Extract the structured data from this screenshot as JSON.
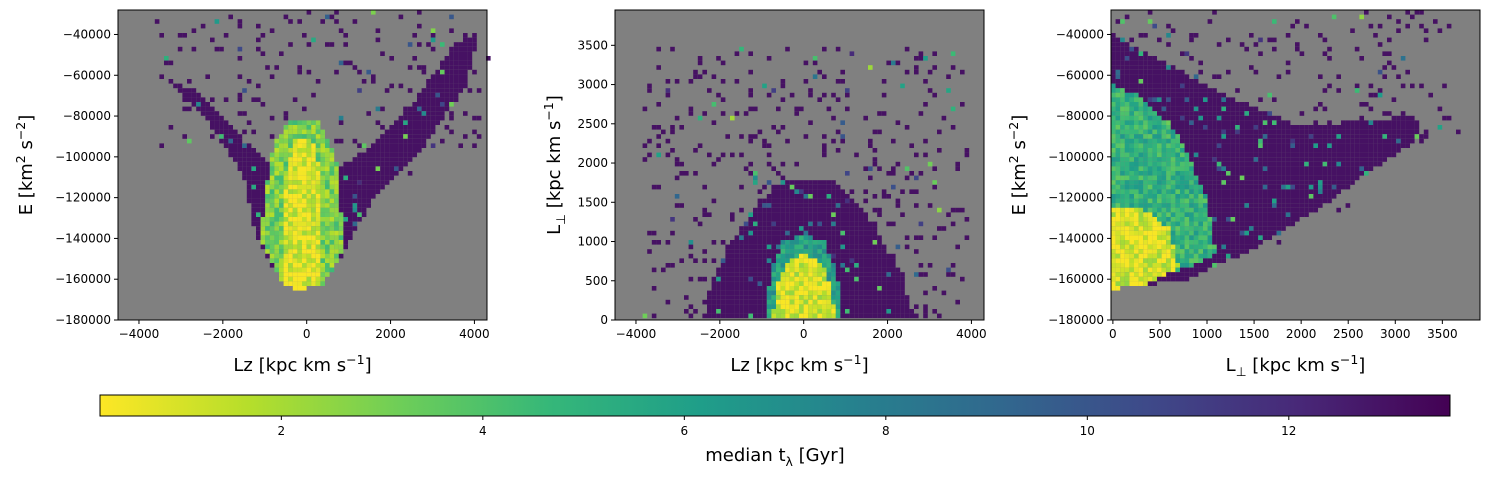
{
  "colors": {
    "background_bins": "#808080",
    "viridis": [
      "#440154",
      "#482878",
      "#3e4989",
      "#31688e",
      "#26828e",
      "#1f9e89",
      "#35b779",
      "#6ece58",
      "#b5de2b",
      "#fde725"
    ]
  },
  "chart_data": [
    {
      "type": "heatmap",
      "title": "",
      "xlabel_parts": {
        "base": "Lz [kpc km s",
        "sup": "−1",
        "tail": "]"
      },
      "ylabel_parts": {
        "base": "E [km",
        "sup": "2",
        "mid": " s",
        "sup2": "−2",
        "tail": "]"
      },
      "xlim": [
        -4500,
        4300
      ],
      "ylim": [
        -180000,
        -28000
      ],
      "xticks": [
        -4000,
        -2000,
        0,
        2000,
        4000
      ],
      "yticks": [
        -180000,
        -160000,
        -140000,
        -120000,
        -100000,
        -80000,
        -60000,
        -40000
      ],
      "xtick_labels": [
        "−4000",
        "−2000",
        "0",
        "2000",
        "4000"
      ],
      "ytick_labels": [
        "−180000",
        "−160000",
        "−140000",
        "−120000",
        "−100000",
        "−80000",
        "−60000",
        "−40000"
      ],
      "grid": false,
      "regions": [
        {
          "z": 13,
          "poly": [
            [
              -3500,
              -60000
            ],
            [
              -2500,
              -78000
            ],
            [
              -1500,
              -110000
            ],
            [
              -1200,
              -140000
            ],
            [
              -700,
              -158000
            ],
            [
              -300,
              -165000
            ],
            [
              300,
              -163000
            ],
            [
              800,
              -150000
            ],
            [
              1600,
              -120000
            ],
            [
              2800,
              -95000
            ],
            [
              3800,
              -65000
            ],
            [
              4100,
              -40000
            ],
            [
              3500,
              -45000
            ],
            [
              2500,
              -75000
            ],
            [
              1500,
              -95000
            ],
            [
              500,
              -110000
            ],
            [
              -500,
              -110000
            ],
            [
              -1500,
              -92000
            ],
            [
              -2600,
              -68000
            ]
          ]
        },
        {
          "z": 3,
          "poly": [
            [
              -1000,
              -120000
            ],
            [
              -800,
              -95000
            ],
            [
              -400,
              -82000
            ],
            [
              300,
              -82000
            ],
            [
              700,
              -100000
            ],
            [
              900,
              -145000
            ],
            [
              400,
              -163000
            ],
            [
              -700,
              -158000
            ],
            [
              -1100,
              -140000
            ]
          ]
        },
        {
          "z": 0.8,
          "poly": [
            [
              -600,
              -150000
            ],
            [
              -550,
              -110000
            ],
            [
              -200,
              -90000
            ],
            [
              250,
              -95000
            ],
            [
              350,
              -130000
            ],
            [
              300,
              -164000
            ],
            [
              -300,
              -165000
            ],
            [
              -650,
              -160000
            ]
          ]
        }
      ],
      "scatter_extent": {
        "x": [
          -3600,
          4200
        ],
        "y": [
          -95000,
          -28000
        ]
      }
    },
    {
      "type": "heatmap",
      "title": "",
      "xlabel_parts": {
        "base": "Lz [kpc km s",
        "sup": "−1",
        "tail": "]"
      },
      "ylabel_parts": {
        "base": "L",
        "sub": "⊥",
        "mid": " [kpc km s",
        "sup": "−1",
        "tail": "]"
      },
      "xlim": [
        -4500,
        4300
      ],
      "ylim": [
        0,
        3950
      ],
      "xticks": [
        -4000,
        -2000,
        0,
        2000,
        4000
      ],
      "yticks": [
        0,
        500,
        1000,
        1500,
        2000,
        2500,
        3000,
        3500
      ],
      "xtick_labels": [
        "−4000",
        "−2000",
        "0",
        "2000",
        "4000"
      ],
      "ytick_labels": [
        "0",
        "500",
        "1000",
        "1500",
        "2000",
        "2500",
        "3000",
        "3500"
      ],
      "grid": false,
      "regions": [
        {
          "z": 13,
          "poly": [
            [
              -2400,
              0
            ],
            [
              -2200,
              500
            ],
            [
              -1700,
              1000
            ],
            [
              -1100,
              1500
            ],
            [
              -400,
              1800
            ],
            [
              600,
              1800
            ],
            [
              1300,
              1500
            ],
            [
              1900,
              1000
            ],
            [
              2400,
              500
            ],
            [
              2600,
              0
            ]
          ]
        },
        {
          "z": 6,
          "poly": [
            [
              -900,
              0
            ],
            [
              -800,
              600
            ],
            [
              -500,
              1000
            ],
            [
              0,
              1100
            ],
            [
              500,
              1000
            ],
            [
              800,
              600
            ],
            [
              900,
              0
            ]
          ]
        },
        {
          "z": 1,
          "poly": [
            [
              -750,
              0
            ],
            [
              -650,
              450
            ],
            [
              -400,
              750
            ],
            [
              0,
              850
            ],
            [
              400,
              750
            ],
            [
              650,
              450
            ],
            [
              750,
              0
            ]
          ]
        }
      ],
      "scatter_extent": {
        "x": [
          -3800,
          3900
        ],
        "y": [
          0,
          3500
        ]
      }
    },
    {
      "type": "heatmap",
      "title": "",
      "xlabel_parts": {
        "base": "L",
        "sub": "⊥",
        "mid": " [kpc km s",
        "sup": "−1",
        "tail": "]"
      },
      "ylabel_parts": {
        "base": "E [km",
        "sup": "2",
        "mid": " s",
        "sup2": "−2",
        "tail": "]"
      },
      "xlim": [
        -20,
        3900
      ],
      "ylim": [
        -180000,
        -28000
      ],
      "xticks": [
        0,
        500,
        1000,
        1500,
        2000,
        2500,
        3000,
        3500
      ],
      "yticks": [
        -180000,
        -160000,
        -140000,
        -120000,
        -100000,
        -80000,
        -60000,
        -40000
      ],
      "xtick_labels": [
        "0",
        "500",
        "1000",
        "1500",
        "2000",
        "2500",
        "3000",
        "3500"
      ],
      "ytick_labels": [
        "−180000",
        "−160000",
        "−140000",
        "−120000",
        "−100000",
        "−80000",
        "−60000",
        "−40000"
      ],
      "grid": false,
      "regions": [
        {
          "z": 13,
          "poly": [
            [
              0,
              -165000
            ],
            [
              800,
              -160000
            ],
            [
              1500,
              -145000
            ],
            [
              2200,
              -125000
            ],
            [
              2800,
              -105000
            ],
            [
              3300,
              -90000
            ],
            [
              3200,
              -80000
            ],
            [
              2000,
              -85000
            ],
            [
              1200,
              -70000
            ],
            [
              400,
              -50000
            ],
            [
              0,
              -40000
            ]
          ]
        },
        {
          "z": 5,
          "poly": [
            [
              0,
              -160000
            ],
            [
              700,
              -156000
            ],
            [
              1100,
              -148000
            ],
            [
              1000,
              -120000
            ],
            [
              700,
              -90000
            ],
            [
              300,
              -70000
            ],
            [
              0,
              -65000
            ]
          ]
        },
        {
          "z": 1,
          "poly": [
            [
              0,
              -165000
            ],
            [
              400,
              -162000
            ],
            [
              700,
              -155000
            ],
            [
              600,
              -135000
            ],
            [
              300,
              -125000
            ],
            [
              0,
              -125000
            ]
          ]
        }
      ],
      "scatter_extent": {
        "x": [
          0,
          3600
        ],
        "y": [
          -100000,
          -28000
        ]
      }
    }
  ],
  "colorbar": {
    "label_parts": {
      "base": "median t",
      "sub": "λ",
      "tail": " [Gyr]"
    },
    "range": [
      0.2,
      13.6
    ],
    "ticks": [
      2,
      4,
      6,
      8,
      10,
      12
    ],
    "tick_labels": [
      "2",
      "4",
      "6",
      "8",
      "10",
      "12"
    ],
    "colormap": "viridis_r"
  }
}
